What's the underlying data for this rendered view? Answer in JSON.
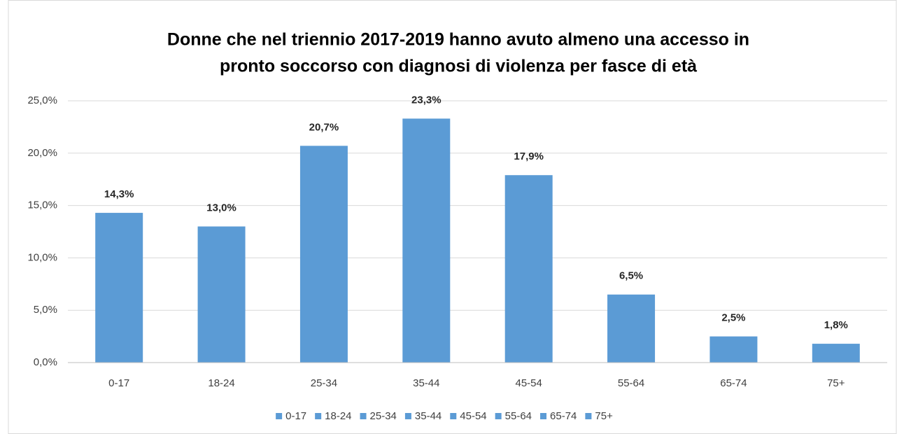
{
  "chart_data": {
    "type": "bar",
    "title": [
      "Donne che nel triennio 2017-2019 hanno avuto almeno una accesso in",
      "pronto soccorso con diagnosi di violenza  per fasce di età"
    ],
    "categories": [
      "0-17",
      "18-24",
      "25-34",
      "35-44",
      "45-54",
      "55-64",
      "65-74",
      "75+"
    ],
    "values": [
      14.3,
      13.0,
      20.7,
      23.3,
      17.9,
      6.5,
      2.5,
      1.8
    ],
    "value_labels": [
      "14,3%",
      "13,0%",
      "20,7%",
      "23,3%",
      "17,9%",
      "6,5%",
      "2,5%",
      "1,8%"
    ],
    "color": "#5b9bd5",
    "ylim": [
      0,
      25
    ],
    "yticks": [
      {
        "value": 0,
        "label": "0,0%"
      },
      {
        "value": 5,
        "label": "5,0%"
      },
      {
        "value": 10,
        "label": "10,0%"
      },
      {
        "value": 15,
        "label": "15,0%"
      },
      {
        "value": 20,
        "label": "20,0%"
      },
      {
        "value": 25,
        "label": "25,0%"
      }
    ],
    "grid": true,
    "legend": "bottom"
  }
}
